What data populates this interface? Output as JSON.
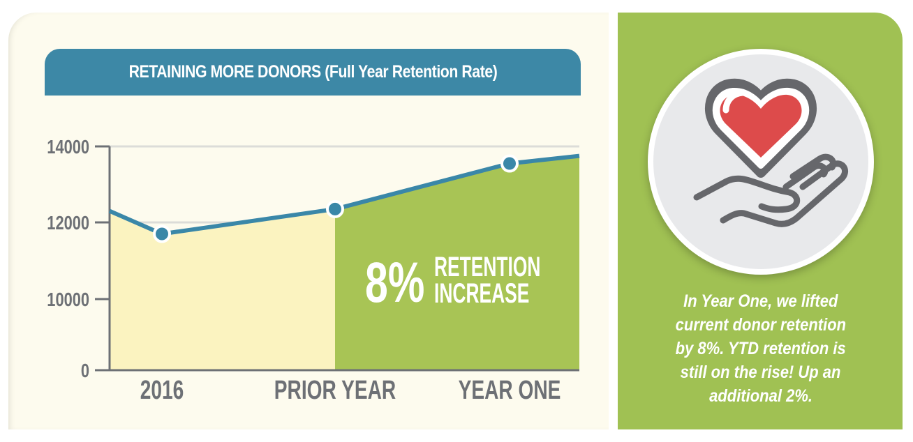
{
  "chart_data": {
    "type": "area",
    "title": "RETAINING MORE DONORS (Full Year Retention Rate)",
    "categories": [
      "2016",
      "PRIOR YEAR",
      "YEAR ONE"
    ],
    "values": [
      11700,
      12350,
      13550
    ],
    "line_start_value": 12300,
    "line_end_value": 13750,
    "yticks": [
      0,
      10000,
      12000,
      14000
    ],
    "ytick_labels": [
      "0",
      "10000",
      "12000",
      "14000"
    ],
    "ylim": [
      0,
      14000
    ],
    "grid": true,
    "annotation": {
      "big": "8%",
      "line1": "RETENTION",
      "line2": "INCREASE"
    },
    "colors": {
      "line": "#3a87a8",
      "fill_before": "#fbf3c0",
      "fill_after": "#a8c455",
      "axis": "#6d7075",
      "banner": "#3d88a6"
    }
  },
  "side_panel": {
    "icon": "heart-in-hand-icon",
    "caption_lines": [
      "In Year One, we lifted",
      "current donor retention",
      "by 8%. YTD retention is",
      "still on the rise! Up an",
      "additional 2%."
    ],
    "colors": {
      "panel": "#a0c153",
      "heart": "#dd4b4b",
      "outline": "#66676b"
    }
  }
}
